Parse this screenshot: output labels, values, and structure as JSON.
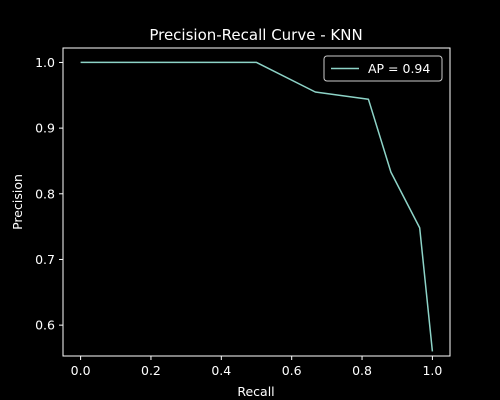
{
  "chart_data": {
    "type": "line",
    "title": "Precision-Recall Curve - KNN",
    "xlabel": "Recall",
    "ylabel": "Precision",
    "xlim": [
      -0.05,
      1.05
    ],
    "ylim": [
      0.553,
      1.022
    ],
    "xticks": [
      0.0,
      0.2,
      0.4,
      0.6,
      0.8,
      1.0
    ],
    "xtick_labels": [
      "0.0",
      "0.2",
      "0.4",
      "0.6",
      "0.8",
      "1.0"
    ],
    "yticks": [
      0.6,
      0.7,
      0.8,
      0.9,
      1.0
    ],
    "ytick_labels": [
      "0.6",
      "0.7",
      "0.8",
      "0.9",
      "1.0"
    ],
    "grid": false,
    "legend_position": "upper right",
    "background": "#000000",
    "foreground": "#ffffff",
    "series": [
      {
        "name": "AP = 0.94",
        "color": "#8dd3c7",
        "x": [
          0.0,
          0.1,
          0.2,
          0.3,
          0.4,
          0.5,
          0.667,
          0.818,
          0.882,
          0.964,
          1.0
        ],
        "y": [
          1.0,
          1.0,
          1.0,
          1.0,
          1.0,
          1.0,
          0.955,
          0.944,
          0.833,
          0.748,
          0.56
        ]
      }
    ]
  }
}
